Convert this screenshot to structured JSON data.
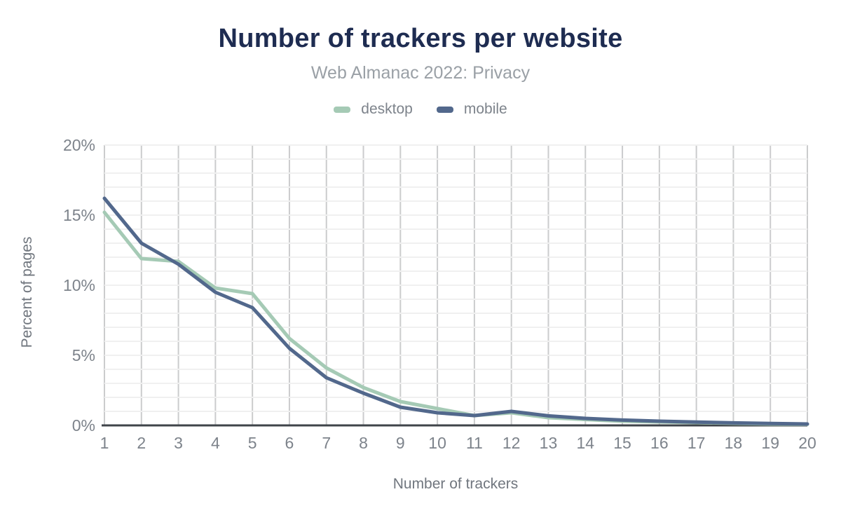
{
  "chart_data": {
    "type": "line",
    "title": "Number of trackers per website",
    "subtitle": "Web Almanac 2022: Privacy",
    "xlabel": "Number of trackers",
    "ylabel": "Percent of pages",
    "x": [
      1,
      2,
      3,
      4,
      5,
      6,
      7,
      8,
      9,
      10,
      11,
      12,
      13,
      14,
      15,
      16,
      17,
      18,
      19,
      20
    ],
    "series": [
      {
        "name": "desktop",
        "color": "#a5cab5",
        "values": [
          15.2,
          11.9,
          11.7,
          9.8,
          9.4,
          6.2,
          4.1,
          2.7,
          1.7,
          1.2,
          0.7,
          0.9,
          0.55,
          0.42,
          0.3,
          0.25,
          0.2,
          0.15,
          0.1,
          0.08
        ]
      },
      {
        "name": "mobile",
        "color": "#52688c",
        "values": [
          16.2,
          13.0,
          11.5,
          9.5,
          8.4,
          5.5,
          3.4,
          2.3,
          1.3,
          0.9,
          0.7,
          1.0,
          0.68,
          0.5,
          0.38,
          0.3,
          0.24,
          0.18,
          0.14,
          0.1
        ]
      }
    ],
    "ylim": [
      0,
      20
    ],
    "y_ticks": [
      "0%",
      "5%",
      "10%",
      "15%",
      "20%"
    ],
    "y_tick_values": [
      0,
      5,
      10,
      15,
      20
    ],
    "y_minor_step": 1,
    "legend_position": "top",
    "grid": {
      "vertical_color": "#cbcccd",
      "horizontal_color": "#f0f0f0",
      "axis_color": "#3f444a"
    },
    "text_colors": {
      "title": "#1e2c51",
      "subtitle": "#9aa0a6",
      "tick": "#7d838b",
      "axis_title": "#70767e"
    }
  }
}
